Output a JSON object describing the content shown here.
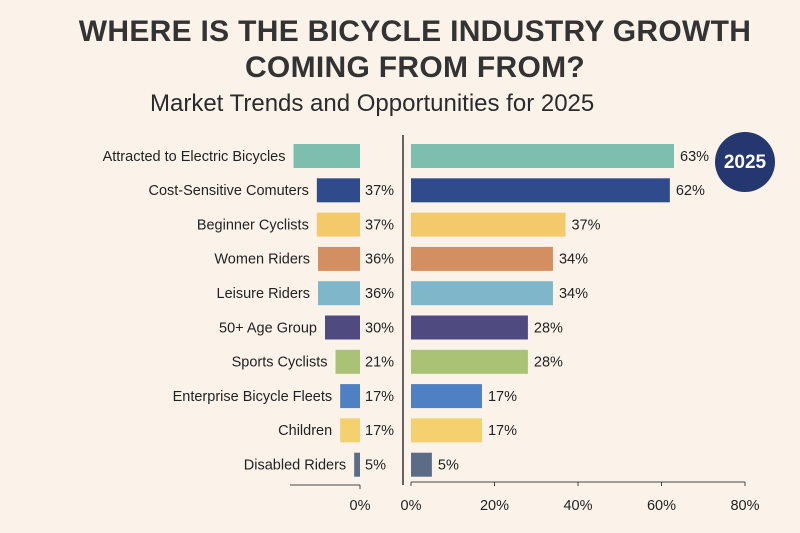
{
  "chart_data": {
    "type": "bar",
    "title": "WHERE IS THE BICYCLE INDUSTRY GROWTH COMING FROM FROM?",
    "subtitle": "Market Trends and Opportunities for 2025",
    "badge": "2025",
    "categories": [
      "Attracted to Electric Bicycles",
      "Cost-Sensitive Comuters",
      "Beginner Cyclists",
      "Women Riders",
      "Leisure Riders",
      "50+ Age Group",
      "Sports Cyclists",
      "Enterprise Bicycle Fleets",
      "Children",
      "Disabled Riders"
    ],
    "colors": [
      "#7dbfae",
      "#2f4b8c",
      "#f3c96b",
      "#d38f62",
      "#80b6c9",
      "#4f4a7f",
      "#a9c276",
      "#5080c4",
      "#f4d06f",
      "#5c6c87"
    ],
    "panels": [
      {
        "values": [
          57,
          37,
          37,
          36,
          36,
          30,
          21,
          17,
          17,
          5
        ],
        "value_labels": [
          null,
          "37%",
          "37%",
          "36%",
          "36%",
          "30%",
          "21%",
          "17%",
          "17%",
          "5%"
        ],
        "xlim": [
          0,
          60
        ],
        "xticks": [
          {
            "value": 0,
            "label": "0%"
          }
        ]
      },
      {
        "values": [
          63,
          62,
          37,
          34,
          34,
          28,
          28,
          17,
          17,
          5
        ],
        "value_labels": [
          "63%",
          "62%",
          "37%",
          "34%",
          "34%",
          "28%",
          "28%",
          "17%",
          "17%",
          "5%"
        ],
        "xlim": [
          0,
          80
        ],
        "xticks": [
          {
            "value": 0,
            "label": "0%"
          },
          {
            "value": 20,
            "label": "20%"
          },
          {
            "value": 40,
            "label": "40%"
          },
          {
            "value": 60,
            "label": "60%"
          },
          {
            "value": 80,
            "label": "80%"
          }
        ]
      }
    ]
  }
}
